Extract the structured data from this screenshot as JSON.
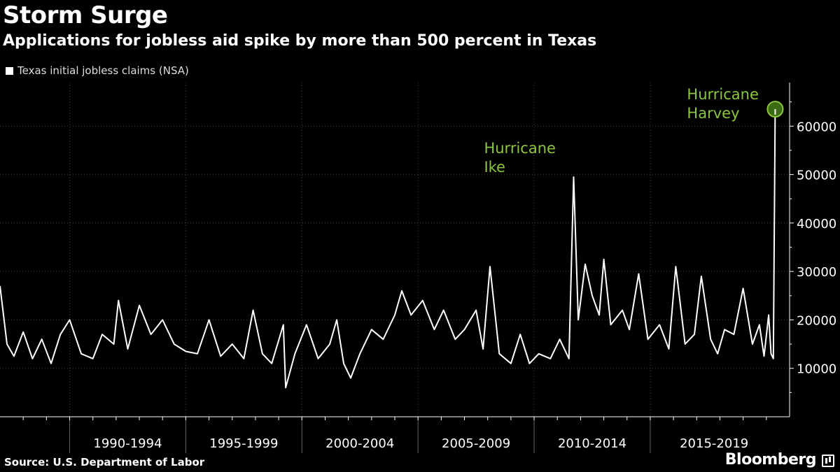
{
  "header": {
    "title": "Storm Surge",
    "subtitle": "Applications for jobless aid spike by more than 500 percent in Texas"
  },
  "footer": {
    "source": "Source: U.S. Department of Labor",
    "brand": "Bloomberg"
  },
  "colors": {
    "background": "#000000",
    "series": "#ffffff",
    "annotation": "#8dc63f",
    "grid": "#444444"
  },
  "chart_data": {
    "type": "line",
    "legend_placement": "top-left",
    "series": [
      {
        "name": "Texas initial jobless claims (NSA)",
        "points": [
          [
            1987.0,
            27000
          ],
          [
            1987.3,
            15000
          ],
          [
            1987.6,
            12500
          ],
          [
            1988.0,
            17500
          ],
          [
            1988.4,
            12000
          ],
          [
            1988.8,
            16000
          ],
          [
            1989.2,
            11000
          ],
          [
            1989.6,
            17000
          ],
          [
            1990.0,
            20000
          ],
          [
            1990.5,
            13000
          ],
          [
            1991.0,
            12000
          ],
          [
            1991.4,
            17000
          ],
          [
            1991.9,
            15000
          ],
          [
            1992.1,
            24000
          ],
          [
            1992.5,
            14000
          ],
          [
            1993.0,
            23000
          ],
          [
            1993.5,
            17000
          ],
          [
            1994.0,
            20000
          ],
          [
            1994.5,
            15000
          ],
          [
            1995.0,
            13500
          ],
          [
            1995.5,
            13000
          ],
          [
            1996.0,
            20000
          ],
          [
            1996.5,
            12500
          ],
          [
            1997.0,
            15000
          ],
          [
            1997.5,
            12000
          ],
          [
            1997.9,
            22000
          ],
          [
            1998.3,
            13000
          ],
          [
            1998.7,
            11000
          ],
          [
            1999.2,
            19000
          ],
          [
            1999.3,
            6000
          ],
          [
            1999.7,
            13000
          ],
          [
            2000.2,
            19000
          ],
          [
            2000.7,
            12000
          ],
          [
            2001.2,
            15000
          ],
          [
            2001.5,
            20000
          ],
          [
            2001.8,
            11000
          ],
          [
            2002.1,
            8000
          ],
          [
            2002.5,
            13000
          ],
          [
            2003.0,
            18000
          ],
          [
            2003.5,
            16000
          ],
          [
            2004.0,
            21000
          ],
          [
            2004.3,
            26000
          ],
          [
            2004.7,
            21000
          ],
          [
            2005.2,
            24000
          ],
          [
            2005.7,
            18000
          ],
          [
            2006.1,
            22000
          ],
          [
            2006.6,
            16000
          ],
          [
            2007.0,
            18000
          ],
          [
            2007.5,
            22000
          ],
          [
            2007.8,
            14000
          ],
          [
            2008.1,
            31000
          ],
          [
            2008.5,
            13000
          ],
          [
            2009.0,
            11000
          ],
          [
            2009.4,
            17000
          ],
          [
            2009.8,
            11000
          ],
          [
            2010.2,
            13000
          ],
          [
            2010.7,
            12000
          ],
          [
            2011.1,
            16000
          ],
          [
            2011.5,
            12000
          ],
          [
            2011.7,
            49500
          ],
          [
            2011.9,
            20000
          ],
          [
            2012.2,
            31500
          ],
          [
            2012.5,
            25000
          ],
          [
            2012.8,
            21000
          ],
          [
            2013.0,
            32500
          ],
          [
            2013.3,
            19000
          ],
          [
            2013.8,
            22000
          ],
          [
            2014.1,
            18000
          ],
          [
            2014.5,
            29500
          ],
          [
            2014.9,
            16000
          ],
          [
            2015.4,
            19000
          ],
          [
            2015.8,
            14000
          ],
          [
            2016.1,
            31000
          ],
          [
            2016.5,
            15000
          ],
          [
            2016.9,
            17000
          ],
          [
            2017.2,
            29000
          ],
          [
            2017.6,
            16000
          ],
          [
            2017.9,
            13000
          ],
          [
            2018.2,
            18000
          ],
          [
            2018.6,
            17000
          ],
          [
            2019.0,
            26500
          ],
          [
            2019.4,
            15000
          ],
          [
            2019.7,
            19000
          ],
          [
            2019.9,
            12500
          ],
          [
            2020.1,
            21000
          ],
          [
            2020.2,
            13000
          ],
          [
            2020.3,
            12000
          ],
          [
            2020.38,
            63500
          ]
        ]
      }
    ],
    "x_tick_labels": [
      "1990-1994",
      "1995-1999",
      "2000-2004",
      "2005-2009",
      "2010-2014",
      "2015-2019"
    ],
    "x_tick_ranges": [
      [
        1990,
        1995
      ],
      [
        1995,
        2000
      ],
      [
        2000,
        2005
      ],
      [
        2005,
        2010
      ],
      [
        2010,
        2015
      ],
      [
        2015,
        2020.5
      ]
    ],
    "xlim": [
      1987,
      2021
    ],
    "ylim": [
      0,
      69000
    ],
    "y_ticks": [
      10000,
      20000,
      30000,
      40000,
      50000,
      60000
    ],
    "y_tick_labels": [
      "10000",
      "20000",
      "30000",
      "40000",
      "50000",
      "60000"
    ],
    "y_axis_position": "right",
    "grid": "dotted",
    "annotations": [
      {
        "label": "Hurricane Ike",
        "lines": [
          "Hurricane",
          "Ike"
        ],
        "x": 2011.7,
        "y": 49500
      },
      {
        "label": "Hurricane Harvey",
        "lines": [
          "Hurricane",
          "Harvey"
        ],
        "x": 2020.38,
        "y": 63500,
        "marker": "circle"
      }
    ]
  }
}
